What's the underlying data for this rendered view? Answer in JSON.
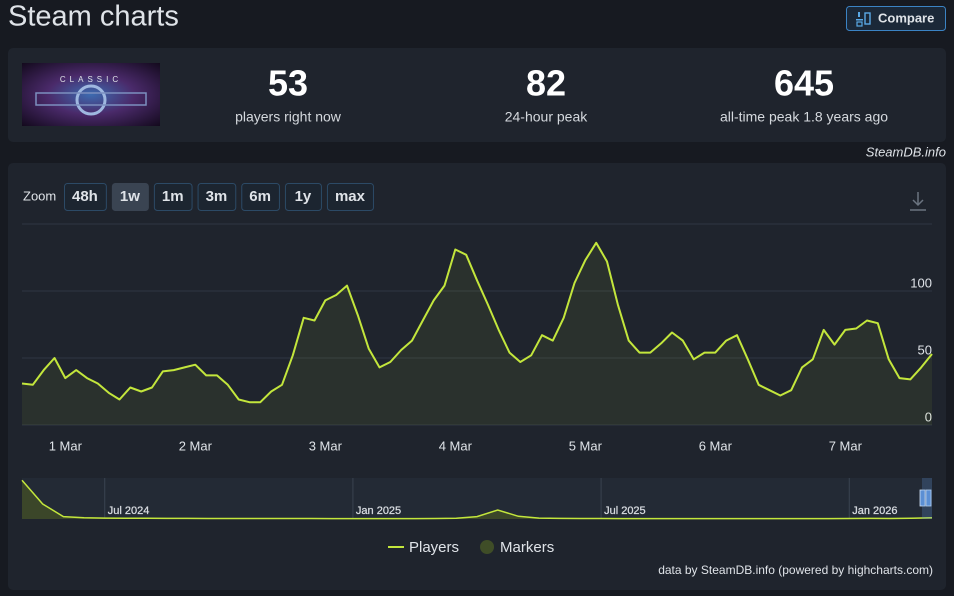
{
  "header": {
    "title": "Steam charts",
    "compare_button": "Compare"
  },
  "stats": {
    "logo_text": "CLASSIC",
    "items": [
      {
        "value": 53,
        "label": "players right now"
      },
      {
        "value": 82,
        "label": "24-hour peak"
      },
      {
        "value": 645,
        "label": "all-time peak 1.8 years ago"
      }
    ]
  },
  "watermark": "SteamDB.info",
  "zoom": {
    "label": "Zoom",
    "options": [
      "48h",
      "1w",
      "1m",
      "3m",
      "6m",
      "1y",
      "max"
    ],
    "active": "1w"
  },
  "chart_data": [
    {
      "type": "line",
      "categories": [
        null,
        null,
        null,
        null,
        "1 Mar",
        null,
        null,
        null,
        null,
        null,
        null,
        null,
        null,
        null,
        null,
        null,
        "2 Mar",
        null,
        null,
        null,
        null,
        null,
        null,
        null,
        null,
        null,
        null,
        null,
        "3 Mar",
        null,
        null,
        null,
        null,
        null,
        null,
        null,
        null,
        null,
        null,
        null,
        "4 Mar",
        null,
        null,
        null,
        null,
        null,
        null,
        null,
        null,
        null,
        null,
        null,
        "5 Mar",
        null,
        null,
        null,
        null,
        null,
        null,
        null,
        null,
        null,
        null,
        null,
        "6 Mar",
        null,
        null,
        null,
        null,
        null,
        null,
        null,
        null,
        null,
        null,
        null,
        "7 Mar",
        null,
        null,
        null,
        null,
        null,
        null,
        null,
        null
      ],
      "series": [
        {
          "name": "Players",
          "color": "#c3e63c",
          "values": [
            31,
            30,
            41,
            50,
            35,
            41,
            35,
            31,
            24,
            19,
            28,
            25,
            28,
            40,
            41,
            43,
            45,
            37,
            37,
            30,
            19,
            17,
            17,
            25,
            30,
            52,
            80,
            78,
            93,
            97,
            104,
            82,
            57,
            43,
            47,
            56,
            63,
            78,
            93,
            104,
            131,
            127,
            108,
            90,
            71,
            54,
            47,
            52,
            67,
            63,
            80,
            106,
            123,
            136,
            122,
            90,
            63,
            54,
            54,
            61,
            69,
            63,
            49,
            54,
            54,
            63,
            67,
            49,
            30,
            26,
            22,
            26,
            43,
            49,
            71,
            60,
            71,
            72,
            78,
            76,
            49,
            35,
            34,
            43,
            53
          ]
        },
        {
          "name": "Markers",
          "color": "#3f4d27"
        }
      ],
      "ylim": [
        0,
        150
      ],
      "yticks": [
        0,
        50,
        100
      ],
      "grid": true
    },
    {
      "type": "area",
      "categories": [
        null,
        null,
        null,
        null,
        "Jul 2024",
        null,
        null,
        null,
        null,
        null,
        null,
        null,
        null,
        null,
        null,
        null,
        "Jan 2025",
        null,
        null,
        null,
        null,
        null,
        null,
        null,
        null,
        null,
        null,
        null,
        "Jul 2025",
        null,
        null,
        null,
        null,
        null,
        null,
        null,
        null,
        null,
        null,
        null,
        "Jan 2026",
        null,
        null,
        null,
        null
      ],
      "series": [
        {
          "name": "Players",
          "color": "#c3e63c",
          "values": [
            645,
            250,
            40,
            20,
            15,
            14,
            12,
            10,
            10,
            9,
            9,
            8,
            8,
            8,
            8,
            7,
            7,
            7,
            7,
            7,
            8,
            12,
            40,
            150,
            45,
            15,
            10,
            8,
            8,
            7,
            7,
            7,
            7,
            7,
            7,
            7,
            6,
            6,
            6,
            6,
            8,
            10,
            9,
            12,
            20
          ]
        }
      ],
      "ylim": [
        0,
        650
      ]
    }
  ],
  "credit": "data by SteamDB.info (powered by highcharts.com)"
}
